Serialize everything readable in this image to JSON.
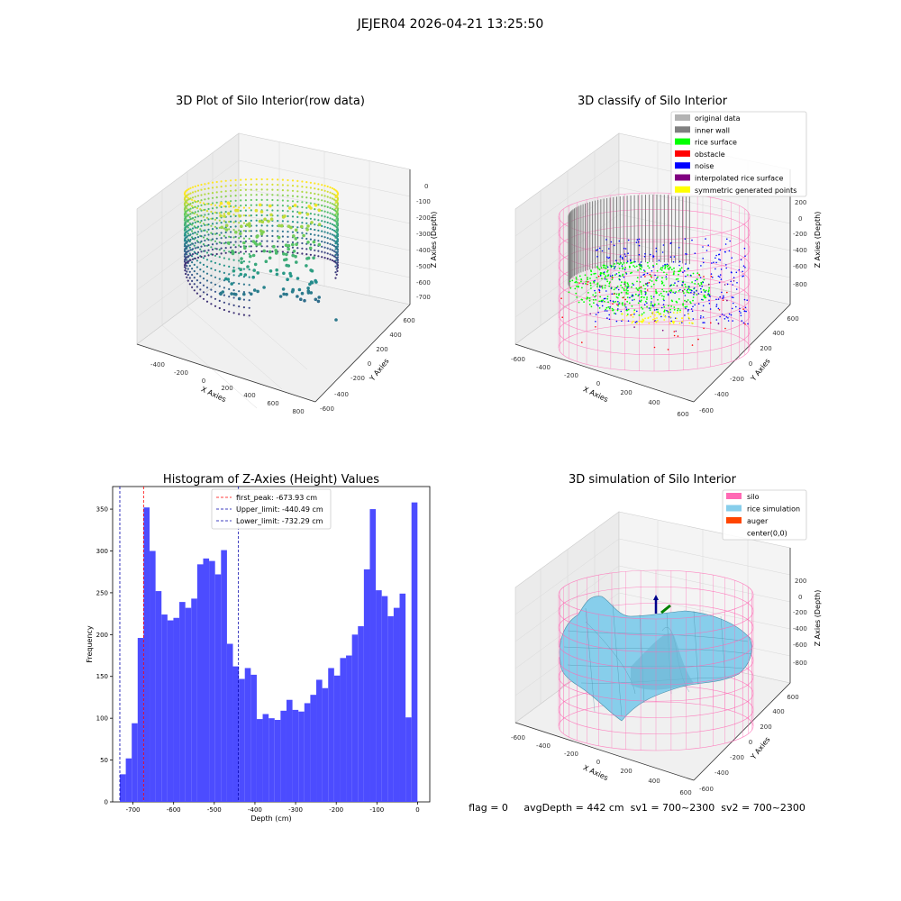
{
  "suptitle": "JEJER04 2026-04-21 13:25:50",
  "footer": "flag = 0     avgDepth = 442 cm  sv1 = 700~2300  sv2 = 700~2300",
  "colors": {
    "hist_bar": "#4c4cff",
    "first_peak_line": "#ff0000",
    "limit_line": "#0000aa",
    "silo_pink": "#ff69b4",
    "rice_sim": "#87ceeb",
    "auger": "#ff4500",
    "original": "#b3b3b3",
    "inner_wall": "#808080",
    "rice_surface": "#00ff00",
    "obstacle": "#ff0000",
    "noise": "#0000ff",
    "interpolated": "#800080",
    "symmetric": "#ffff00"
  },
  "panel1": {
    "title": "3D Plot of Silo Interior(row data)",
    "xlabel": "X Axies",
    "ylabel": "Y Axies",
    "zlabel": "Z Axies (Depth)",
    "x_ticks": [
      "-400",
      "-200",
      "0",
      "200",
      "400",
      "600",
      "800"
    ],
    "y_ticks": [
      "-600",
      "-400",
      "-200",
      "0",
      "200",
      "400",
      "600"
    ],
    "z_ticks": [
      "0",
      "-100",
      "-200",
      "-300",
      "-400",
      "-500",
      "-600",
      "-700"
    ]
  },
  "panel2": {
    "title": "3D classify of Silo Interior",
    "xlabel": "X Axies",
    "ylabel": "Y Axies",
    "zlabel": "Z Axies (Depth)",
    "x_ticks": [
      "-600",
      "-400",
      "-200",
      "0",
      "200",
      "400",
      "600"
    ],
    "y_ticks": [
      "-600",
      "-400",
      "-200",
      "0",
      "200",
      "400",
      "600"
    ],
    "z_ticks": [
      "200",
      "0",
      "-200",
      "-400",
      "-600",
      "-800"
    ],
    "legend": [
      {
        "label": "original data",
        "color": "#b3b3b3"
      },
      {
        "label": "inner wall",
        "color": "#808080"
      },
      {
        "label": "rice surface",
        "color": "#00ff00"
      },
      {
        "label": "obstacle",
        "color": "#ff0000"
      },
      {
        "label": "noise",
        "color": "#0000ff"
      },
      {
        "label": "interpolated rice surface",
        "color": "#800080"
      },
      {
        "label": "symmetric generated points",
        "color": "#ffff00"
      }
    ]
  },
  "panel4": {
    "title": "3D simulation of Silo Interior",
    "xlabel": "X Axies",
    "ylabel": "Y Axies",
    "zlabel": "Z Axies (Depth)",
    "x_ticks": [
      "-600",
      "-400",
      "-200",
      "0",
      "200",
      "400",
      "600"
    ],
    "y_ticks": [
      "-600",
      "-400",
      "-200",
      "0",
      "200",
      "400",
      "600"
    ],
    "z_ticks": [
      "200",
      "0",
      "-200",
      "-400",
      "-600",
      "-800"
    ],
    "legend": [
      {
        "label": "silo",
        "color": "#ff69b4"
      },
      {
        "label": "rice simulation",
        "color": "#87ceeb"
      },
      {
        "label": "auger",
        "color": "#ff4500"
      },
      {
        "label": "center(0,0)",
        "color": ""
      }
    ]
  },
  "chart_data": {
    "type": "bar",
    "title": "Histogram of Z-Axies (Height) Values",
    "xlabel": "Depth (cm)",
    "ylabel": "Frequency",
    "xlim": [
      -750,
      30
    ],
    "ylim": [
      0,
      377
    ],
    "x_ticks": [
      -700,
      -600,
      -500,
      -400,
      -300,
      -200,
      -100,
      0
    ],
    "y_ticks": [
      0,
      50,
      100,
      150,
      200,
      250,
      300,
      350
    ],
    "bin_start": -732.29,
    "bin_width": 14.64,
    "values": [
      33,
      52,
      94,
      196,
      352,
      300,
      252,
      224,
      217,
      220,
      239,
      232,
      243,
      284,
      291,
      288,
      272,
      301,
      189,
      162,
      147,
      160,
      152,
      99,
      105,
      100,
      98,
      109,
      122,
      110,
      108,
      118,
      128,
      146,
      136,
      160,
      151,
      172,
      175,
      200,
      210,
      278,
      350,
      253,
      246,
      222,
      232,
      249,
      101,
      358
    ],
    "vlines": [
      {
        "name": "first_peak",
        "value": -673.93,
        "label": "first_peak: -673.93 cm",
        "color": "#ff0000"
      },
      {
        "name": "Upper_limit",
        "value": -440.49,
        "label": "Upper_limit: -440.49 cm",
        "color": "#0000aa"
      },
      {
        "name": "Lower_limit",
        "value": -732.29,
        "label": "Lower_limit: -732.29 cm",
        "color": "#0000aa"
      }
    ],
    "legend_position": "top-center"
  }
}
